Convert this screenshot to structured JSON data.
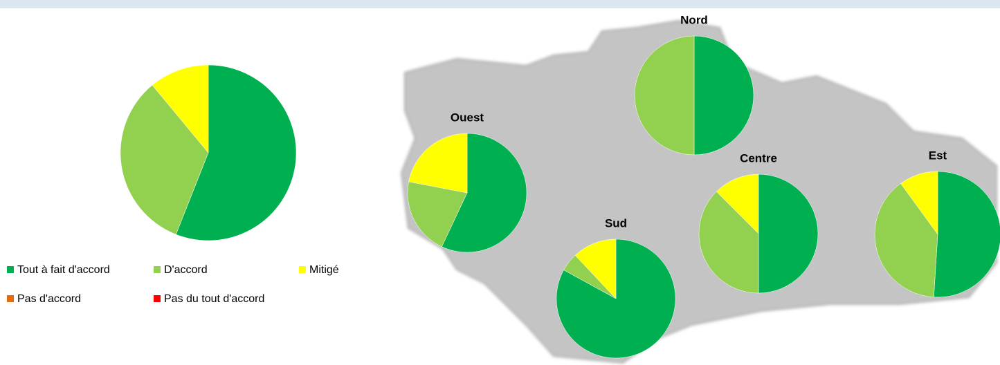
{
  "chart_data": {
    "type": "pie",
    "categories": [
      "Tout à fait d'accord",
      "D'accord",
      "Mitigé",
      "Pas d'accord",
      "Pas du tout d'accord"
    ],
    "colors": [
      "#00b050",
      "#92d050",
      "#ffff00",
      "#e36c09",
      "#ff0000"
    ],
    "legend": "bottom",
    "pies": [
      {
        "values": [
          56,
          33,
          11,
          0,
          0
        ]
      },
      {
        "title": "Nord",
        "values": [
          50,
          50,
          0,
          0,
          0
        ]
      },
      {
        "title": "Ouest",
        "values": [
          57,
          21,
          22,
          0,
          0
        ]
      },
      {
        "title": "Centre",
        "values": [
          50,
          37.5,
          12.5,
          0,
          0
        ]
      },
      {
        "title": "Est",
        "values": [
          51,
          39,
          10,
          0,
          0
        ]
      },
      {
        "title": "Sud",
        "values": [
          83,
          5,
          12,
          0,
          0
        ]
      }
    ]
  }
}
